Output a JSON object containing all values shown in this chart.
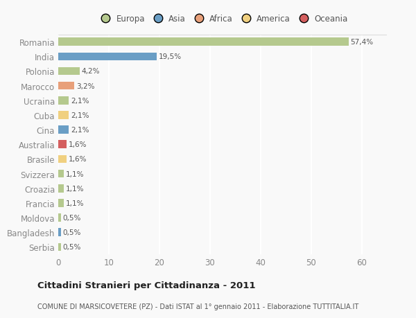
{
  "countries": [
    "Romania",
    "India",
    "Polonia",
    "Marocco",
    "Ucraina",
    "Cuba",
    "Cina",
    "Australia",
    "Brasile",
    "Svizzera",
    "Croazia",
    "Francia",
    "Moldova",
    "Bangladesh",
    "Serbia"
  ],
  "values": [
    57.4,
    19.5,
    4.2,
    3.2,
    2.1,
    2.1,
    2.1,
    1.6,
    1.6,
    1.1,
    1.1,
    1.1,
    0.5,
    0.5,
    0.5
  ],
  "labels": [
    "57,4%",
    "19,5%",
    "4,2%",
    "3,2%",
    "2,1%",
    "2,1%",
    "2,1%",
    "1,6%",
    "1,6%",
    "1,1%",
    "1,1%",
    "1,1%",
    "0,5%",
    "0,5%",
    "0,5%"
  ],
  "colors": [
    "#b5c98e",
    "#6a9ec5",
    "#b5c98e",
    "#e8a07a",
    "#b5c98e",
    "#f0d080",
    "#6a9ec5",
    "#d45f5f",
    "#f0d080",
    "#b5c98e",
    "#b5c98e",
    "#b5c98e",
    "#b5c98e",
    "#6a9ec5",
    "#b5c98e"
  ],
  "legend_labels": [
    "Europa",
    "Asia",
    "Africa",
    "America",
    "Oceania"
  ],
  "legend_colors": [
    "#b5c98e",
    "#6a9ec5",
    "#e8a07a",
    "#f0d080",
    "#d45f5f"
  ],
  "xlim": [
    0,
    65
  ],
  "xticks": [
    0,
    10,
    20,
    30,
    40,
    50,
    60
  ],
  "title": "Cittadini Stranieri per Cittadinanza - 2011",
  "subtitle": "COMUNE DI MARSICOVETERE (PZ) - Dati ISTAT al 1° gennaio 2011 - Elaborazione TUTTITALIA.IT",
  "background_color": "#f9f9f9",
  "grid_color": "#ffffff",
  "bar_height": 0.55
}
